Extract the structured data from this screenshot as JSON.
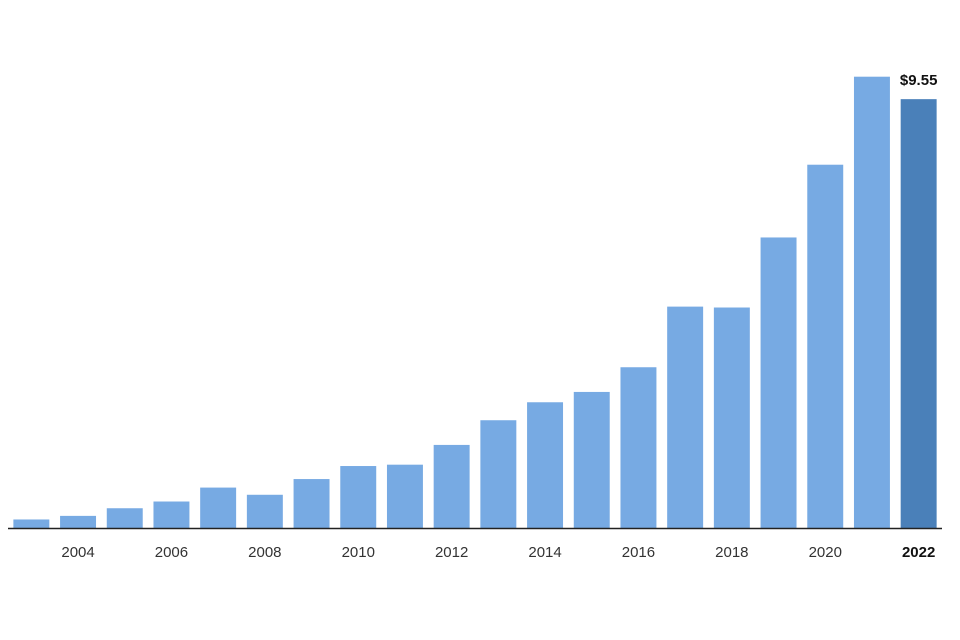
{
  "chart_data": {
    "type": "bar",
    "categories": [
      "2003",
      "2004",
      "2005",
      "2006",
      "2007",
      "2008",
      "2009",
      "2010",
      "2011",
      "2012",
      "2013",
      "2014",
      "2015",
      "2016",
      "2017",
      "2018",
      "2019",
      "2020",
      "2021",
      "2022"
    ],
    "values": [
      0.19,
      0.27,
      0.44,
      0.59,
      0.9,
      0.74,
      1.09,
      1.38,
      1.41,
      1.85,
      2.4,
      2.8,
      3.03,
      3.58,
      4.93,
      4.91,
      6.47,
      8.09,
      10.05,
      9.55
    ],
    "tick_labels": [
      "2004",
      "2006",
      "2008",
      "2010",
      "2012",
      "2014",
      "2016",
      "2018",
      "2020",
      "2022"
    ],
    "highlight_category": "2022",
    "highlight_value_label": "$9.55",
    "title": "",
    "xlabel": "",
    "ylabel": "",
    "ylim": [
      0,
      10.6
    ],
    "grid": false,
    "colors": {
      "bar": "#77aae3",
      "highlight_bar": "#4a80b9",
      "axis": "#222222"
    }
  }
}
